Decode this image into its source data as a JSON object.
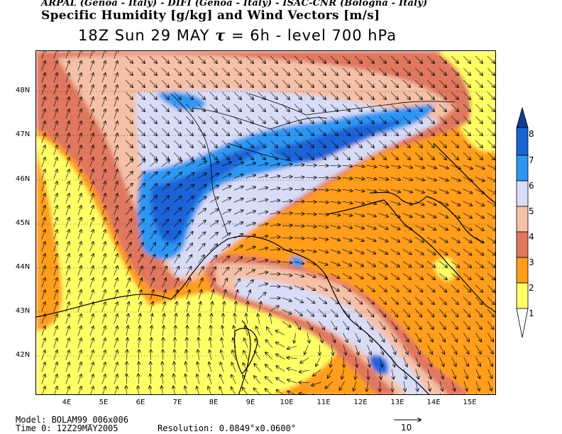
{
  "header": {
    "credits": "ARPAL (Genoa - Italy) - DIFI (Genoa - Italy) - ISAC-CNR (Bologna - Italy)",
    "title": "Specific Humidity [g/kg] and Wind Vectors [m/s]",
    "subtitle_pre": "18Z Sun 29 MAY ",
    "subtitle_tau": "τ",
    "subtitle_post": " = 6h  -  level 700 hPa"
  },
  "map": {
    "lat_labels": [
      "48N",
      "47N",
      "46N",
      "45N",
      "44N",
      "43N",
      "42N"
    ],
    "lon_labels": [
      "4E",
      "5E",
      "6E",
      "7E",
      "8E",
      "9E",
      "10E",
      "11E",
      "12E",
      "13E",
      "14E",
      "15E"
    ],
    "lat_range": [
      41.1,
      48.9
    ],
    "lon_range": [
      3.2,
      16.2
    ]
  },
  "colorbar": {
    "levels": [
      "1",
      "2",
      "3",
      "4",
      "5",
      "6",
      "7",
      "8"
    ],
    "colors": {
      "lt1": "#ffffff",
      "1-2": "#ffff66",
      "2-3": "#ff9d1c",
      "3-4": "#e0775e",
      "4-5": "#f5c0a6",
      "5-6": "#d8dcf7",
      "6-7": "#2e96f2",
      "7-8": "#1b64d8",
      "gt8": "#0e3d96"
    }
  },
  "footer": {
    "model": "Model: BOLAM99_006x006",
    "time": "Time 0: 12Z29MAY2005",
    "resolution": "Resolution: 0.0849°x0.0600°",
    "ref_vector_label": "10"
  }
}
